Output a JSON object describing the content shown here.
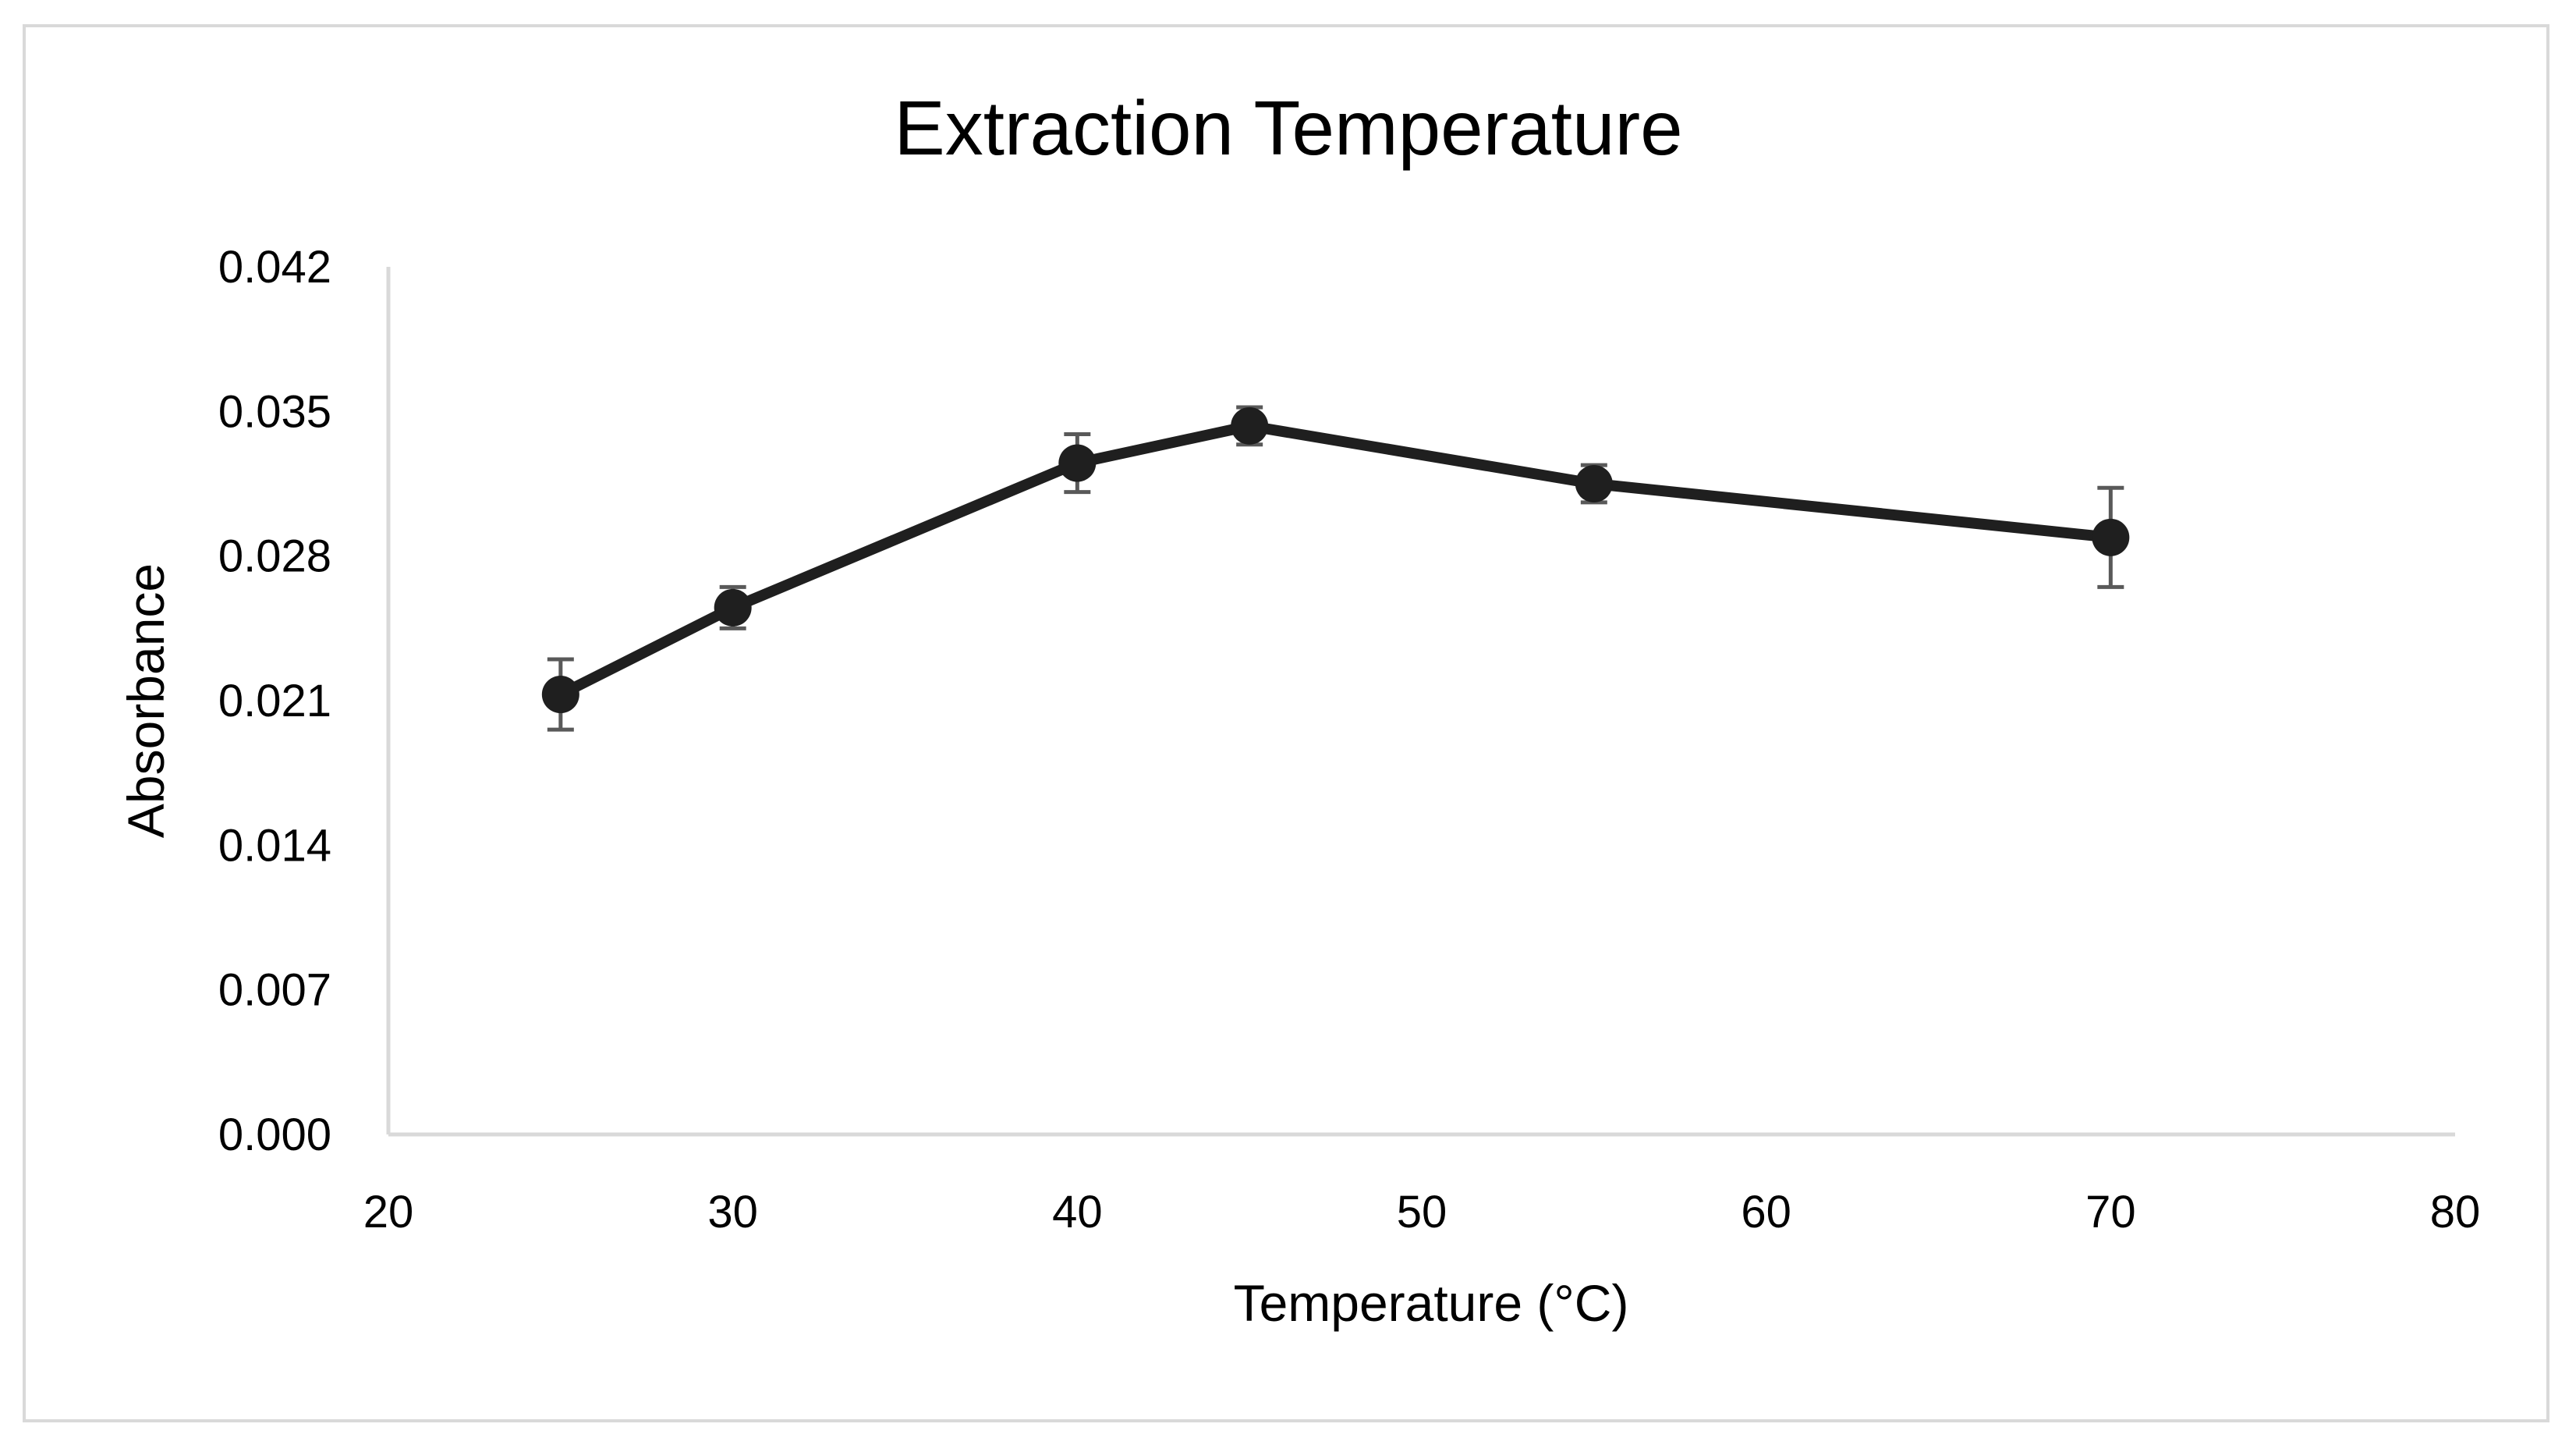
{
  "chart_data": {
    "type": "line",
    "title": "Extraction Temperature",
    "xlabel": "Temperature (°C)",
    "ylabel": "Absorbance",
    "xlim": [
      20,
      80
    ],
    "ylim": [
      0.0,
      0.042
    ],
    "x_ticks": [
      20,
      30,
      40,
      50,
      60,
      70,
      80
    ],
    "y_ticks": [
      "0.000",
      "0.007",
      "0.014",
      "0.021",
      "0.028",
      "0.035",
      "0.042"
    ],
    "grid": false,
    "legend": "none",
    "series": [
      {
        "name": "Absorbance",
        "color": "#1f1f1f",
        "x": [
          25,
          30,
          40,
          45,
          55,
          70
        ],
        "y": [
          0.0213,
          0.0255,
          0.0325,
          0.0343,
          0.0315,
          0.0289
        ],
        "error": [
          0.0017,
          0.001,
          0.0014,
          0.0009,
          0.0009,
          0.0024
        ]
      }
    ]
  }
}
